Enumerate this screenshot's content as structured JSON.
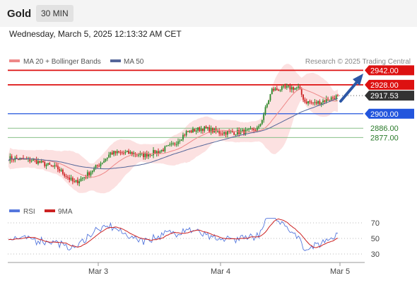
{
  "header": {
    "title": "Gold",
    "interval": "30 MIN"
  },
  "datetime": "Wednesday, March 5, 2025 12:13:32 AM CET",
  "legend": {
    "ma20": "MA 20 + Bollinger Bands",
    "ma50": "MA 50",
    "credit": "Research © 2025 Trading Central"
  },
  "colors": {
    "resistance": "#dd1111",
    "support": "#2255dd",
    "minor": "#88c088",
    "up": "#2a8a2a",
    "down": "#cc2222",
    "ma20": "#ee8888",
    "ma50": "#556699",
    "band": "#fbd9d9",
    "rsi": "#5577dd",
    "rsi_ma": "#cc2222",
    "arrow": "#2c57a6"
  },
  "chart_data": [
    {
      "type": "candlestick",
      "levels": [
        {
          "value": 2942.0,
          "label": "2942.00",
          "kind": "resistance"
        },
        {
          "value": 2928.0,
          "label": "2928.00",
          "kind": "resistance"
        },
        {
          "value": 2917.53,
          "label": "2917.53",
          "kind": "last"
        },
        {
          "value": 2900.0,
          "label": "2900.00",
          "kind": "support"
        },
        {
          "value": 2886.0,
          "label": "2886.00",
          "kind": "minor"
        },
        {
          "value": 2877.0,
          "label": "2877.00",
          "kind": "minor"
        }
      ],
      "x_labels": [
        "Mar 3",
        "Mar 4",
        "Mar 5"
      ],
      "ylim": [
        2815,
        2945
      ],
      "last_price": 2917.53
    },
    {
      "type": "line",
      "series": [
        {
          "name": "RSI"
        },
        {
          "name": "9MA"
        }
      ],
      "y_ticks": [
        "70",
        "50",
        "30"
      ],
      "ylim": [
        20,
        80
      ]
    }
  ]
}
